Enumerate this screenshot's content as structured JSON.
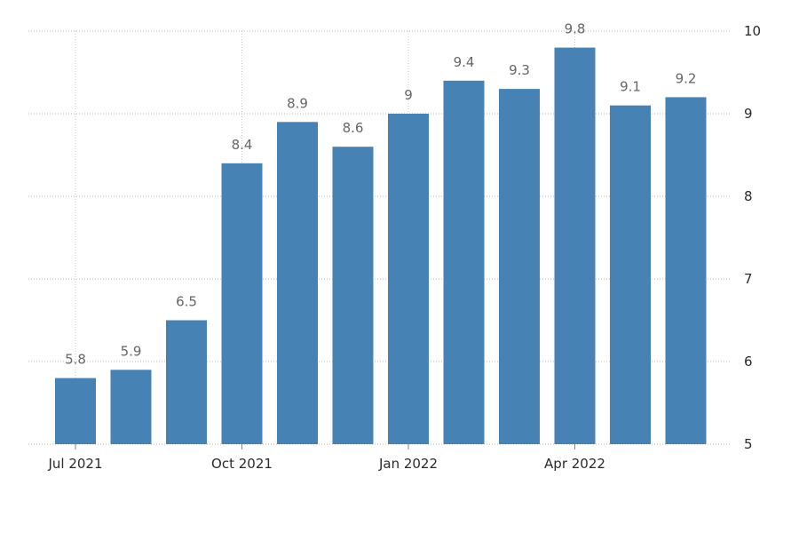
{
  "chart_data": {
    "type": "bar",
    "categories": [
      "2021-07",
      "2021-08",
      "2021-09",
      "2021-10",
      "2021-11",
      "2021-12",
      "2022-01",
      "2022-02",
      "2022-03",
      "2022-04",
      "2022-05",
      "2022-06"
    ],
    "values": [
      5.8,
      5.9,
      6.5,
      8.4,
      8.9,
      8.6,
      9,
      9.4,
      9.3,
      9.8,
      9.1,
      9.2
    ],
    "value_labels": [
      "5.8",
      "5.9",
      "6.5",
      "8.4",
      "8.9",
      "8.6",
      "9",
      "9.4",
      "9.3",
      "9.8",
      "9.1",
      "9.2"
    ],
    "x_tick_labels": [
      {
        "index": 0,
        "label": "Jul 2021"
      },
      {
        "index": 3,
        "label": "Oct 2021"
      },
      {
        "index": 6,
        "label": "Jan 2022"
      },
      {
        "index": 9,
        "label": "Apr 2022"
      }
    ],
    "y_ticks": [
      5,
      6,
      7,
      8,
      9,
      10
    ],
    "ylim": [
      5,
      10
    ],
    "y_axis_side": "right",
    "grid": true,
    "bar_color": "#4682b4",
    "title": "",
    "xlabel": "",
    "ylabel": ""
  }
}
